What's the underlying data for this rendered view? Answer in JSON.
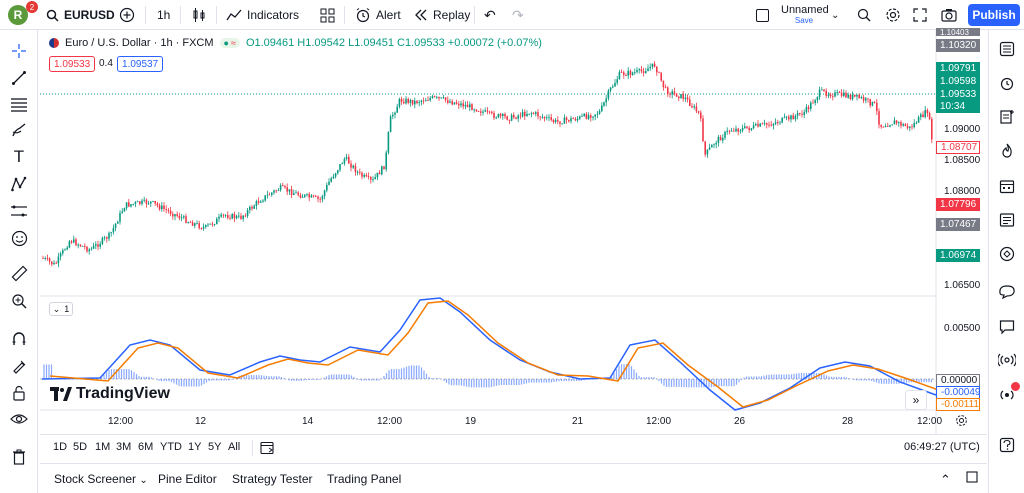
{
  "topbar": {
    "avatar_letter": "R",
    "avatar_badge": "2",
    "symbol": "EURUSD",
    "interval": "1h",
    "indicators_label": "Indicators",
    "alert_label": "Alert",
    "replay_label": "Replay",
    "layout_name": "Unnamed",
    "layout_status": "Save",
    "publish_label": "Publish"
  },
  "legend": {
    "title": "Euro / U.S. Dollar · 1h · FXCM",
    "ohlc": "O1.09461 H1.09542 L1.09451 C1.09533 +0.00072 (+0.07%)",
    "bid": "1.09533",
    "spread": "0.4",
    "ask": "1.09537"
  },
  "price_axis": {
    "labels": [
      "1.10320",
      "1.09791",
      "1.09598",
      "1.09533",
      "10:34",
      "1.09000",
      "1.08707",
      "1.08500",
      "1.08000",
      "1.07796",
      "1.07467",
      "1.06974",
      "1.06500"
    ],
    "top_clipped": "1.10403"
  },
  "indicator_axis": {
    "labels": [
      "0.00500",
      "0.00000",
      "-0.00049",
      "-0.00111"
    ],
    "collapse_label": "1"
  },
  "time_axis": {
    "labels": [
      "12:00",
      "12",
      "14",
      "12:00",
      "19",
      "21",
      "12:00",
      "26",
      "28",
      "12:00"
    ]
  },
  "timeframes": [
    "1D",
    "5D",
    "1M",
    "3M",
    "6M",
    "YTD",
    "1Y",
    "5Y",
    "All"
  ],
  "clock": "06:49:27 (UTC)",
  "bottom_tabs": [
    "Stock Screener",
    "Pine Editor",
    "Strategy Tester",
    "Trading Panel"
  ],
  "brand": "TradingView",
  "colors": {
    "up": "#089981",
    "down": "#f23645",
    "macd": "#2962ff",
    "signal": "#f57c00",
    "accent": "#2962ff"
  },
  "icons": {
    "left": [
      "crosshair-icon",
      "trend-line-icon",
      "fib-icon",
      "brush-icon",
      "text-icon",
      "pattern-icon",
      "forecast-icon",
      "emoji-icon",
      "ruler-icon",
      "zoom-icon",
      "magnet-icon",
      "lock-drawing-icon",
      "lock-icon",
      "eye-icon",
      "trash-icon"
    ],
    "right": [
      "watchlist-icon",
      "alerts-icon",
      "hotlist-icon",
      "calendar-icon",
      "news-icon",
      "ideas-icon",
      "chat-icon",
      "streams-icon",
      "signal-icon",
      "help-icon"
    ]
  }
}
